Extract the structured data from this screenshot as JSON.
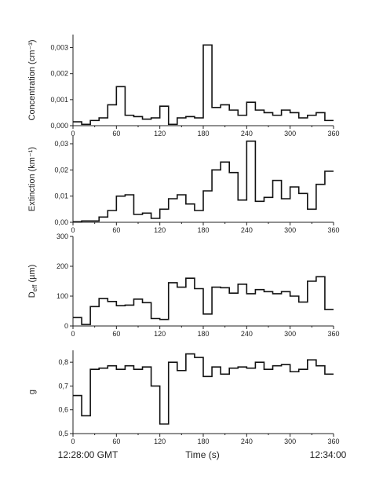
{
  "chart_data": [
    {
      "type": "line",
      "step": true,
      "ylabel": "Concentration (cm⁻³)",
      "xlim": [
        0,
        360
      ],
      "ylim": [
        0,
        0.0035
      ],
      "yticks": [
        "0,000",
        "0,001",
        "0,002",
        "0,003"
      ],
      "ytick_values": [
        0,
        0.001,
        0.002,
        0.003
      ],
      "xticks": [
        "0",
        "60",
        "120",
        "180",
        "240",
        "300",
        "360"
      ],
      "series": [
        {
          "x": [
            0,
            12,
            24,
            36,
            48,
            60,
            72,
            84,
            96,
            108,
            120,
            132,
            144,
            156,
            168,
            180,
            192,
            204,
            216,
            228,
            240,
            252,
            264,
            276,
            288,
            300,
            312,
            324,
            336,
            348,
            360
          ],
          "y": [
            0.00015,
            5e-05,
            0.0002,
            0.0003,
            0.0008,
            0.0015,
            0.0004,
            0.00035,
            0.00025,
            0.0003,
            0.00075,
            5e-05,
            0.0003,
            0.00035,
            0.0003,
            0.0031,
            0.0007,
            0.0008,
            0.0006,
            0.0004,
            0.0009,
            0.0006,
            0.0005,
            0.0004,
            0.0006,
            0.0005,
            0.0003,
            0.0004,
            0.0005,
            0.0002,
            0.0001
          ]
        }
      ]
    },
    {
      "type": "line",
      "step": true,
      "ylabel": "Extinction (km⁻¹)",
      "xlim": [
        0,
        360
      ],
      "ylim": [
        0,
        0.033
      ],
      "yticks": [
        "0,00",
        "0,01",
        "0,02",
        "0,03"
      ],
      "ytick_values": [
        0,
        0.01,
        0.02,
        0.03
      ],
      "xticks": [
        "0",
        "60",
        "120",
        "180",
        "240",
        "300",
        "360"
      ],
      "series": [
        {
          "x": [
            0,
            12,
            24,
            36,
            48,
            60,
            72,
            84,
            96,
            108,
            120,
            132,
            144,
            156,
            168,
            180,
            192,
            204,
            216,
            228,
            240,
            252,
            264,
            276,
            288,
            300,
            312,
            324,
            336,
            348,
            360
          ],
          "y": [
            0.0002,
            0.0005,
            0.0005,
            0.002,
            0.0045,
            0.01,
            0.0105,
            0.003,
            0.0035,
            0.0015,
            0.005,
            0.009,
            0.0105,
            0.007,
            0.0045,
            0.012,
            0.02,
            0.023,
            0.019,
            0.0085,
            0.031,
            0.008,
            0.0095,
            0.016,
            0.009,
            0.0135,
            0.011,
            0.005,
            0.0145,
            0.0195,
            0.0022
          ]
        }
      ]
    },
    {
      "type": "line",
      "step": true,
      "ylabel": "Deff (µm)",
      "ylabel_main": "D",
      "ylabel_sub": "eff",
      "ylabel_unit": " (µm)",
      "xlim": [
        0,
        360
      ],
      "ylim": [
        0,
        300
      ],
      "yticks": [
        "0",
        "100",
        "200",
        "300"
      ],
      "ytick_values": [
        0,
        100,
        200,
        300
      ],
      "xticks": [
        "0",
        "60",
        "120",
        "180",
        "240",
        "300",
        "360"
      ],
      "series": [
        {
          "x": [
            0,
            12,
            24,
            36,
            48,
            60,
            72,
            84,
            96,
            108,
            120,
            132,
            144,
            156,
            168,
            180,
            192,
            204,
            216,
            228,
            240,
            252,
            264,
            276,
            288,
            300,
            312,
            324,
            336,
            348,
            360
          ],
          "y": [
            28,
            5,
            65,
            92,
            82,
            68,
            70,
            90,
            78,
            25,
            22,
            145,
            130,
            160,
            125,
            40,
            130,
            128,
            110,
            140,
            108,
            122,
            115,
            108,
            115,
            100,
            80,
            150,
            165,
            55,
            132
          ]
        }
      ]
    },
    {
      "type": "line",
      "step": true,
      "ylabel": "g",
      "xlabel": "Time (s)",
      "xlim": [
        0,
        360
      ],
      "ylim": [
        0.5,
        0.85
      ],
      "yticks": [
        "0,5",
        "0,6",
        "0,7",
        "0,8"
      ],
      "ytick_values": [
        0.5,
        0.6,
        0.7,
        0.8
      ],
      "xticks": [
        "0",
        "60",
        "120",
        "180",
        "240",
        "300",
        "360"
      ],
      "series": [
        {
          "x": [
            0,
            12,
            24,
            36,
            48,
            60,
            72,
            84,
            96,
            108,
            120,
            132,
            144,
            156,
            168,
            180,
            192,
            204,
            216,
            228,
            240,
            252,
            264,
            276,
            288,
            300,
            312,
            324,
            336,
            348,
            360
          ],
          "y": [
            0.66,
            0.575,
            0.77,
            0.775,
            0.785,
            0.77,
            0.785,
            0.77,
            0.78,
            0.7,
            0.54,
            0.8,
            0.765,
            0.835,
            0.82,
            0.74,
            0.78,
            0.75,
            0.775,
            0.78,
            0.775,
            0.8,
            0.77,
            0.785,
            0.79,
            0.76,
            0.77,
            0.81,
            0.785,
            0.75,
            0.82
          ]
        }
      ]
    }
  ],
  "time_start": "12:28:00 GMT",
  "time_end": "12:34:00",
  "colors": {
    "line": "#111111",
    "axis": "#222222"
  }
}
